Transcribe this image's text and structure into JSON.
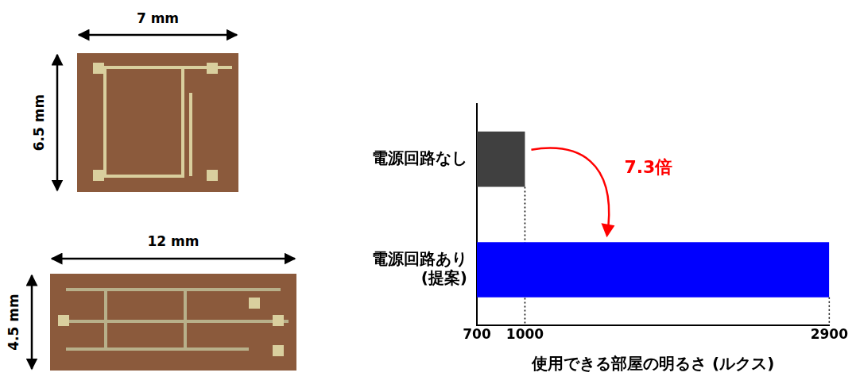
{
  "chart_data": {
    "type": "bar",
    "orientation": "horizontal",
    "categories": [
      "電源回路なし",
      "電源回路あり (提案)"
    ],
    "values": [
      1000,
      2900
    ],
    "colors": [
      "#404040",
      "#0000ff"
    ],
    "x_label": "使用できる部屋の明るさ (ルクス)",
    "xlim": [
      700,
      2900
    ],
    "xticks": [
      700,
      1000,
      2900
    ],
    "grid": false,
    "annotation": "7.3倍"
  },
  "photos": [
    {
      "width": "7 mm",
      "height": "6.5 mm"
    },
    {
      "width": "12 mm",
      "height": "4.5 mm"
    }
  ]
}
